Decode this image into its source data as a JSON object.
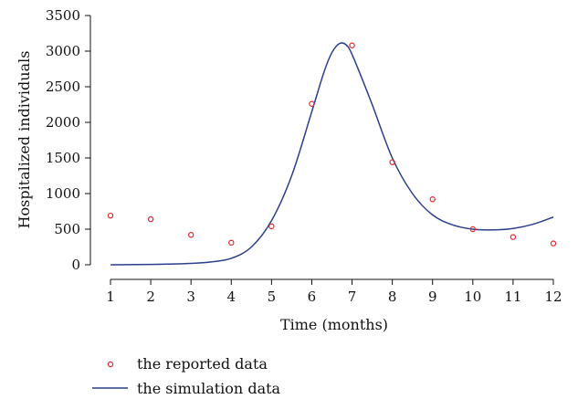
{
  "chart_data": {
    "type": "scatter",
    "title": "",
    "xlabel": "Time (months)",
    "ylabel": "Hospitalized individuals",
    "xlim": [
      1,
      12
    ],
    "ylim": [
      0,
      3500
    ],
    "xticks": [
      "1",
      "2",
      "3",
      "4",
      "5",
      "6",
      "7",
      "8",
      "9",
      "10",
      "11",
      "12"
    ],
    "yticks": [
      "0",
      "500",
      "1000",
      "1500",
      "2000",
      "2500",
      "3000",
      "3500"
    ],
    "grid": false,
    "legend_position": "bottom-left",
    "series": [
      {
        "name": "the reported data",
        "kind": "scatter",
        "color": "#e0282e",
        "x": [
          1,
          2,
          3,
          4,
          5,
          6,
          7,
          8,
          9,
          10,
          11,
          12
        ],
        "y": [
          690,
          640,
          420,
          310,
          540,
          2260,
          3080,
          1440,
          920,
          500,
          390,
          300
        ]
      },
      {
        "name": "the simulation data",
        "kind": "line",
        "color": "#2b3f8c",
        "x": [
          1,
          2,
          3,
          3.5,
          4,
          4.5,
          5,
          5.5,
          6,
          6.3,
          6.5,
          6.7,
          6.9,
          7.1,
          7.5,
          8,
          8.5,
          9,
          9.5,
          10,
          10.5,
          11,
          11.5,
          12
        ],
        "y": [
          0,
          5,
          20,
          40,
          90,
          250,
          620,
          1250,
          2150,
          2700,
          2980,
          3110,
          3060,
          2820,
          2250,
          1500,
          1000,
          700,
          560,
          500,
          490,
          510,
          570,
          670
        ]
      }
    ]
  }
}
